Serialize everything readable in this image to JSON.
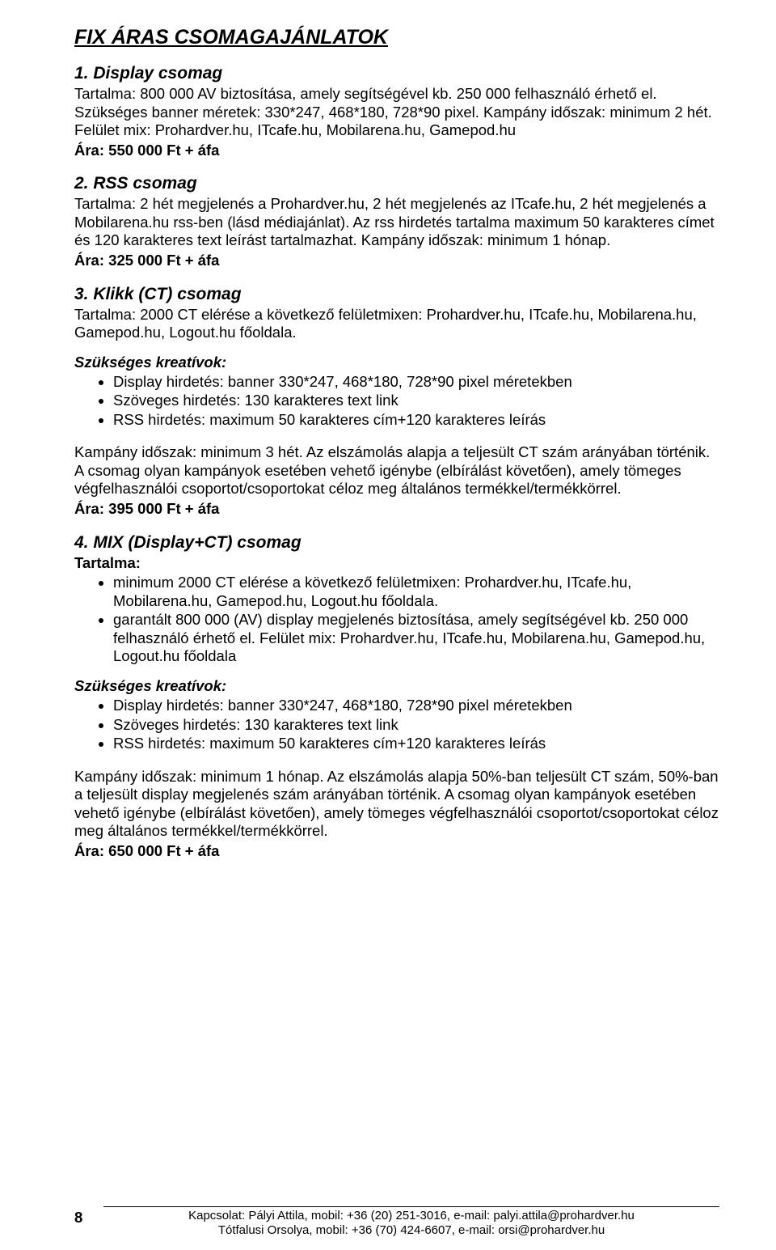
{
  "title": "FIX ÁRAS CSOMAGAJÁNLATOK",
  "s1": {
    "heading": "1. Display csomag",
    "p1": "Tartalma: 800 000 AV biztosítása, amely segítségével kb. 250 000 felhasználó érhető el. Szükséges banner méretek: 330*247, 468*180, 728*90 pixel. Kampány időszak: minimum 2 hét. Felület mix: Prohardver.hu, ITcafe.hu, Mobilarena.hu, Gamepod.hu",
    "price": "Ára: 550 000 Ft + áfa"
  },
  "s2": {
    "heading": "2. RSS csomag",
    "p1": "Tartalma: 2 hét megjelenés a Prohardver.hu, 2 hét megjelenés az ITcafe.hu, 2 hét megjelenés a Mobilarena.hu rss-ben (lásd médiajánlat). Az rss hirdetés tartalma maximum 50 karakteres címet és 120 karakteres text leírást tartalmazhat. Kampány időszak: minimum 1 hónap.",
    "price": "Ára: 325 000 Ft + áfa"
  },
  "s3": {
    "heading": "3. Klikk (CT) csomag",
    "p1": "Tartalma: 2000 CT elérése a következő felületmixen: Prohardver.hu, ITcafe.hu, Mobilarena.hu, Gamepod.hu, Logout.hu főoldala.",
    "kreativ_label": "Szükséges  kreatívok:",
    "bullets": [
      "Display hirdetés: banner 330*247, 468*180, 728*90 pixel méretekben",
      "Szöveges hirdetés: 130 karakteres text link",
      "RSS hirdetés: maximum 50 karakteres cím+120 karakteres leírás"
    ],
    "p2": "Kampány időszak: minimum 3 hét.  Az elszámolás alapja a teljesült CT szám arányában történik. A csomag olyan kampányok esetében vehető igénybe (elbírálást követően), amely tömeges végfelhasználói csoportot/csoportokat céloz meg általános termékkel/termékkörrel.",
    "price": "Ára: 395 000 Ft + áfa"
  },
  "s4": {
    "heading": "4. MIX (Display+CT) csomag",
    "tartalma_label": "Tartalma:",
    "bullets_t": [
      "minimum 2000 CT elérése a következő felületmixen: Prohardver.hu, ITcafe.hu, Mobilarena.hu, Gamepod.hu, Logout.hu főoldala.",
      "garantált 800 000 (AV) display megjelenés biztosítása, amely segítségével kb. 250 000 felhasználó érhető el. Felület mix: Prohardver.hu, ITcafe.hu, Mobilarena.hu, Gamepod.hu, Logout.hu főoldala"
    ],
    "kreativ_label": "Szükséges kreatívok:",
    "bullets_k": [
      "Display hirdetés: banner 330*247, 468*180, 728*90 pixel méretekben",
      "Szöveges hirdetés: 130 karakteres text link",
      "RSS hirdetés: maximum 50 karakteres cím+120 karakteres leírás"
    ],
    "p2": "Kampány időszak: minimum 1 hónap.  Az elszámolás alapja 50%-ban teljesült CT szám, 50%-ban a teljesült display megjelenés szám  arányában történik. A csomag olyan kampányok esetében vehető igénybe (elbírálást követően), amely tömeges végfelhasználói csoportot/csoportokat céloz meg általános termékkel/termékkörrel.",
    "price": "Ára: 650 000 Ft + áfa"
  },
  "footer": {
    "page": "8",
    "line1": "Kapcsolat: Pályi Attila, mobil: +36 (20) 251-3016, e-mail: palyi.attila@prohardver.hu",
    "line2": "Tótfalusi Orsolya, mobil: +36 (70) 424-6607, e-mail: orsi@prohardver.hu"
  }
}
